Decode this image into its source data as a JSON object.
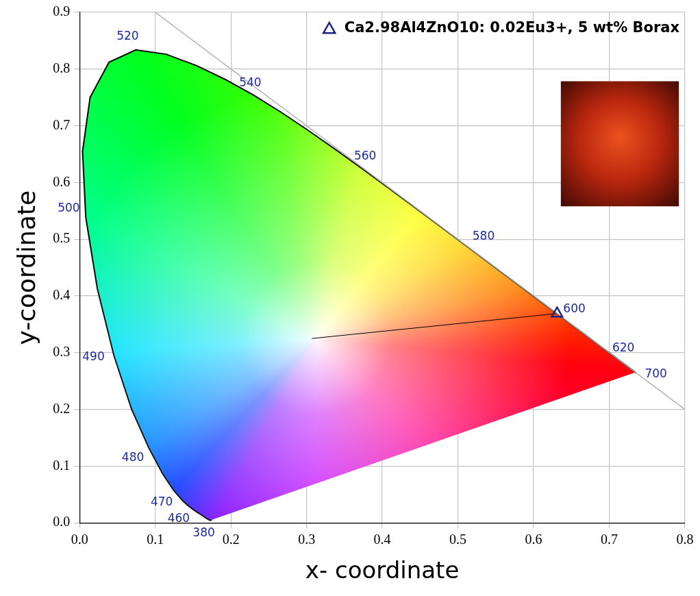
{
  "chart_data": {
    "type": "scatter",
    "x_label": "x- coordinate",
    "y_label": "y-coordinate",
    "xlim": [
      0,
      0.8
    ],
    "xticks": [
      {
        "value": 0,
        "label": "0.0"
      },
      0.1,
      0.2,
      0.3,
      0.4,
      0.5,
      0.6,
      0.7,
      0.8
    ],
    "ylim": [
      0,
      0.9
    ],
    "yticks": [
      {
        "value": 0,
        "label": "0.0"
      },
      0.1,
      0.2,
      0.3,
      0.4,
      0.5,
      0.6,
      0.7,
      0.8,
      0.9
    ],
    "grid": true,
    "legend": "top right",
    "series": [
      {
        "type": "area",
        "color": "#000000",
        "x": [
          0.1741,
          0.174,
          0.1738,
          0.1736,
          0.1733,
          0.173,
          0.1726,
          0.1721,
          0.1714,
          0.1703,
          0.1689,
          0.1669,
          0.1644,
          0.1611,
          0.1566,
          0.151,
          0.144,
          0.1355,
          0.1241,
          0.1096,
          0.0913,
          0.0687,
          0.0454,
          0.0235,
          0.0082,
          0.0039,
          0.0139,
          0.0389,
          0.0743,
          0.1142,
          0.1547,
          0.1929,
          0.2296,
          0.2658,
          0.3016,
          0.3373,
          0.3731,
          0.4087,
          0.4441,
          0.4788,
          0.5125,
          0.5448,
          0.5752,
          0.6029,
          0.627,
          0.6482,
          0.6658,
          0.6801,
          0.6915,
          0.7006,
          0.7079,
          0.714,
          0.719,
          0.723,
          0.726,
          0.7283,
          0.73,
          0.7311,
          0.732,
          0.7327,
          0.7334,
          0.734,
          0.7344,
          0.7346,
          0.7347
        ],
        "y": [
          0.005,
          0.005,
          0.0049,
          0.0049,
          0.0048,
          0.0048,
          0.0048,
          0.0048,
          0.0051,
          0.0058,
          0.0069,
          0.0086,
          0.0109,
          0.0138,
          0.0177,
          0.0227,
          0.0297,
          0.0399,
          0.0578,
          0.0868,
          0.1327,
          0.2007,
          0.295,
          0.4127,
          0.5384,
          0.6548,
          0.7502,
          0.812,
          0.8338,
          0.8262,
          0.8059,
          0.7816,
          0.7543,
          0.7243,
          0.6923,
          0.6589,
          0.6245,
          0.5896,
          0.5547,
          0.5202,
          0.4866,
          0.4544,
          0.4242,
          0.3965,
          0.3725,
          0.3514,
          0.334,
          0.3197,
          0.3083,
          0.2993,
          0.292,
          0.2859,
          0.2809,
          0.277,
          0.274,
          0.2717,
          0.27,
          0.2689,
          0.268,
          0.2673,
          0.2666,
          0.266,
          0.2656,
          0.2654,
          0.2653
        ],
        "point_labels": [
          "380",
          null,
          null,
          null,
          null,
          null,
          null,
          null,
          null,
          null,
          null,
          null,
          null,
          null,
          null,
          null,
          "460",
          null,
          "470",
          null,
          "480",
          null,
          "490",
          null,
          "500",
          null,
          null,
          null,
          "520",
          null,
          null,
          null,
          "540",
          null,
          null,
          null,
          "560",
          null,
          null,
          null,
          "580",
          null,
          null,
          null,
          "600",
          null,
          null,
          null,
          "620",
          null,
          null,
          null,
          null,
          null,
          null,
          null,
          null,
          null,
          null,
          null,
          null,
          null,
          null,
          null,
          "700"
        ]
      },
      {
        "type": "line",
        "color": "#b0b0b0",
        "x": [
          0.1,
          0.8
        ],
        "y": [
          0.9,
          0.2
        ]
      },
      {
        "type": "line",
        "color": "#000000",
        "x": [
          0.307,
          0.631
        ],
        "y": [
          0.325,
          0.369
        ]
      },
      {
        "name": "Ca2.98Al4ZnO10: 0.02Eu3+, 5 wt% Borax",
        "type": "scatter",
        "marker": "triangle",
        "color": "#1a237e",
        "x": [
          0.631
        ],
        "y": [
          0.369
        ]
      }
    ]
  }
}
